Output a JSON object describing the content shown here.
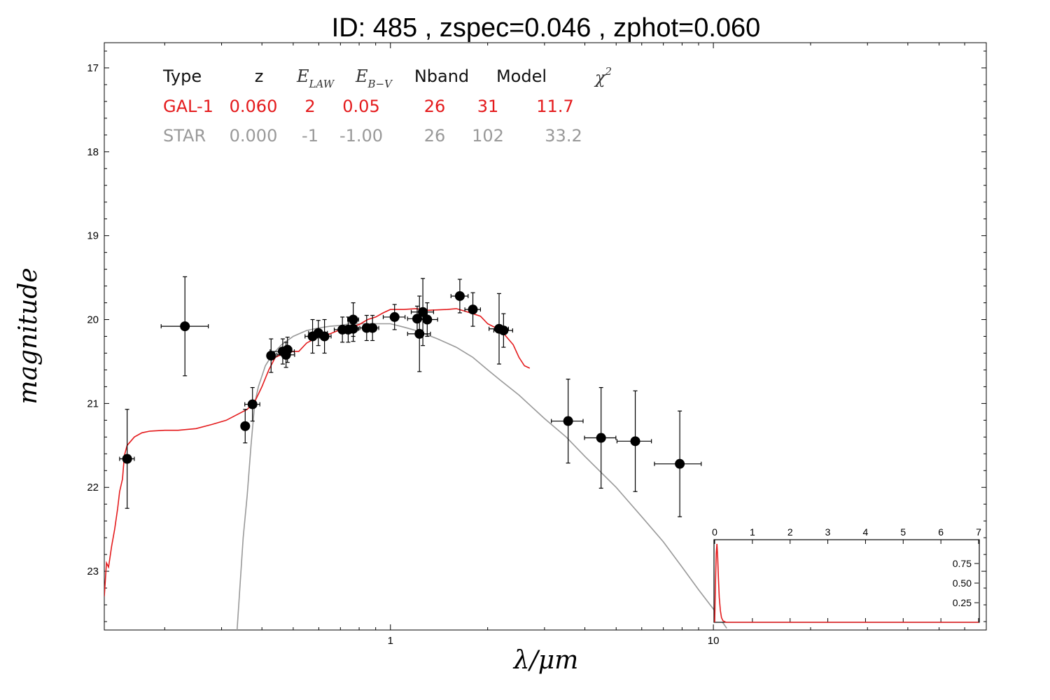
{
  "chart_data": [
    {
      "type": "scatter",
      "title": "ID:  485   , zspec=0.046 , zphot=0.060",
      "xlabel": "λ/μm",
      "ylabel": "magnitude",
      "x_scale": "log",
      "xlim": [
        0.13,
        70
      ],
      "ylim": [
        23.7,
        16.7
      ],
      "y_inverted": true,
      "x_ticks": [
        1,
        10
      ],
      "x_tick_labels": [
        "1",
        "10"
      ],
      "y_ticks": [
        17,
        18,
        19,
        20,
        21,
        22,
        23
      ],
      "y_tick_labels": [
        "17",
        "18",
        "19",
        "20",
        "21",
        "22",
        "23"
      ],
      "grid": false,
      "fit_table": {
        "headers": [
          "Type",
          "z",
          "E_LAW",
          "E_B-V",
          "Nband",
          "Model",
          "χ²"
        ],
        "rows": [
          {
            "name": "GAL-1",
            "color": "#e41a1c",
            "cells": [
              "GAL-1",
              "0.060",
              "2",
              "0.05",
              "26",
              "31",
              "11.7"
            ]
          },
          {
            "name": "STAR",
            "color": "#999999",
            "cells": [
              "STAR",
              "0.000",
              "-1",
              "-1.00",
              "26",
              "102",
              "33.2"
            ]
          }
        ]
      },
      "photometry": [
        {
          "x": 0.153,
          "y": 21.66,
          "xerr_lo": 0.008,
          "xerr_hi": 0.008,
          "yerr": 0.59
        },
        {
          "x": 0.231,
          "y": 20.08,
          "xerr_lo": 0.036,
          "xerr_hi": 0.042,
          "yerr": 0.59
        },
        {
          "x": 0.355,
          "y": 21.27,
          "xerr_lo": 0.009,
          "xerr_hi": 0.009,
          "yerr": 0.2
        },
        {
          "x": 0.374,
          "y": 21.01,
          "xerr_lo": 0.02,
          "xerr_hi": 0.02,
          "yerr": 0.2
        },
        {
          "x": 0.427,
          "y": 20.43,
          "xerr_lo": 0.012,
          "xerr_hi": 0.012,
          "yerr": 0.2
        },
        {
          "x": 0.464,
          "y": 20.38,
          "xerr_lo": 0.04,
          "xerr_hi": 0.04,
          "yerr": 0.15
        },
        {
          "x": 0.475,
          "y": 20.42,
          "xerr_lo": 0.03,
          "xerr_hi": 0.03,
          "yerr": 0.15
        },
        {
          "x": 0.48,
          "y": 20.36,
          "xerr_lo": 0.015,
          "xerr_hi": 0.015,
          "yerr": 0.15
        },
        {
          "x": 0.574,
          "y": 20.2,
          "xerr_lo": 0.03,
          "xerr_hi": 0.03,
          "yerr": 0.2
        },
        {
          "x": 0.598,
          "y": 20.16,
          "xerr_lo": 0.04,
          "xerr_hi": 0.04,
          "yerr": 0.15
        },
        {
          "x": 0.625,
          "y": 20.2,
          "xerr_lo": 0.03,
          "xerr_hi": 0.03,
          "yerr": 0.2
        },
        {
          "x": 0.71,
          "y": 20.12,
          "xerr_lo": 0.04,
          "xerr_hi": 0.04,
          "yerr": 0.15
        },
        {
          "x": 0.74,
          "y": 20.12,
          "xerr_lo": 0.04,
          "xerr_hi": 0.04,
          "yerr": 0.15
        },
        {
          "x": 0.767,
          "y": 20.0,
          "xerr_lo": 0.03,
          "xerr_hi": 0.03,
          "yerr": 0.2
        },
        {
          "x": 0.767,
          "y": 20.11,
          "xerr_lo": 0.03,
          "xerr_hi": 0.03,
          "yerr": 0.15
        },
        {
          "x": 0.844,
          "y": 20.1,
          "xerr_lo": 0.04,
          "xerr_hi": 0.04,
          "yerr": 0.15
        },
        {
          "x": 0.88,
          "y": 20.1,
          "xerr_lo": 0.04,
          "xerr_hi": 0.04,
          "yerr": 0.15
        },
        {
          "x": 1.03,
          "y": 19.97,
          "xerr_lo": 0.08,
          "xerr_hi": 0.08,
          "yerr": 0.15
        },
        {
          "x": 1.21,
          "y": 19.99,
          "xerr_lo": 0.08,
          "xerr_hi": 0.08,
          "yerr": 0.15
        },
        {
          "x": 1.23,
          "y": 20.17,
          "xerr_lo": 0.1,
          "xerr_hi": 0.1,
          "yerr": 0.45
        },
        {
          "x": 1.26,
          "y": 19.91,
          "xerr_lo": 0.1,
          "xerr_hi": 0.1,
          "yerr": 0.4
        },
        {
          "x": 1.3,
          "y": 20.0,
          "xerr_lo": 0.1,
          "xerr_hi": 0.1,
          "yerr": 0.2
        },
        {
          "x": 1.64,
          "y": 19.72,
          "xerr_lo": 0.1,
          "xerr_hi": 0.1,
          "yerr": 0.2
        },
        {
          "x": 1.8,
          "y": 19.88,
          "xerr_lo": 0.1,
          "xerr_hi": 0.1,
          "yerr": 0.2
        },
        {
          "x": 2.17,
          "y": 20.11,
          "xerr_lo": 0.15,
          "xerr_hi": 0.15,
          "yerr": 0.42
        },
        {
          "x": 2.24,
          "y": 20.13,
          "xerr_lo": 0.15,
          "xerr_hi": 0.15,
          "yerr": 0.2
        },
        {
          "x": 3.55,
          "y": 21.21,
          "xerr_lo": 0.4,
          "xerr_hi": 0.4,
          "yerr": 0.5
        },
        {
          "x": 4.49,
          "y": 21.41,
          "xerr_lo": 0.5,
          "xerr_hi": 0.5,
          "yerr": 0.6
        },
        {
          "x": 5.73,
          "y": 21.45,
          "xerr_lo": 0.7,
          "xerr_hi": 0.7,
          "yerr": 0.6
        },
        {
          "x": 7.87,
          "y": 21.72,
          "xerr_lo": 1.3,
          "xerr_hi": 1.3,
          "yerr": 0.63
        }
      ],
      "series": [
        {
          "color": "#e41a1c",
          "points": [
            [
              0.13,
              23.3
            ],
            [
              0.132,
              22.9
            ],
            [
              0.134,
              22.95
            ],
            [
              0.137,
              22.7
            ],
            [
              0.14,
              22.5
            ],
            [
              0.143,
              22.25
            ],
            [
              0.145,
              22.05
            ],
            [
              0.148,
              21.9
            ],
            [
              0.15,
              21.62
            ],
            [
              0.153,
              21.5
            ],
            [
              0.157,
              21.45
            ],
            [
              0.161,
              21.4
            ],
            [
              0.17,
              21.35
            ],
            [
              0.18,
              21.33
            ],
            [
              0.2,
              21.32
            ],
            [
              0.22,
              21.32
            ],
            [
              0.25,
              21.3
            ],
            [
              0.28,
              21.25
            ],
            [
              0.31,
              21.2
            ],
            [
              0.34,
              21.12
            ],
            [
              0.36,
              21.07
            ],
            [
              0.38,
              20.98
            ],
            [
              0.4,
              20.8
            ],
            [
              0.42,
              20.6
            ],
            [
              0.44,
              20.45
            ],
            [
              0.47,
              20.4
            ],
            [
              0.5,
              20.38
            ],
            [
              0.52,
              20.38
            ],
            [
              0.55,
              20.28
            ],
            [
              0.6,
              20.2
            ],
            [
              0.65,
              20.17
            ],
            [
              0.7,
              20.12
            ],
            [
              0.75,
              20.09
            ],
            [
              0.8,
              20.06
            ],
            [
              0.85,
              20.0
            ],
            [
              0.9,
              19.97
            ],
            [
              0.95,
              19.92
            ],
            [
              1.0,
              19.88
            ],
            [
              1.1,
              19.88
            ],
            [
              1.2,
              19.87
            ],
            [
              1.3,
              19.89
            ],
            [
              1.5,
              19.88
            ],
            [
              1.6,
              19.87
            ],
            [
              1.7,
              19.9
            ],
            [
              1.8,
              19.93
            ],
            [
              1.9,
              19.96
            ],
            [
              2.0,
              20.05
            ],
            [
              2.2,
              20.13
            ],
            [
              2.4,
              20.3
            ],
            [
              2.5,
              20.45
            ],
            [
              2.6,
              20.55
            ],
            [
              2.7,
              20.58
            ]
          ]
        },
        {
          "color": "#999999",
          "points": [
            [
              0.335,
              23.7
            ],
            [
              0.35,
              22.6
            ],
            [
              0.36,
              22.1
            ],
            [
              0.37,
              21.5
            ],
            [
              0.38,
              21.0
            ],
            [
              0.39,
              20.8
            ],
            [
              0.41,
              20.55
            ],
            [
              0.43,
              20.42
            ],
            [
              0.46,
              20.3
            ],
            [
              0.5,
              20.2
            ],
            [
              0.55,
              20.13
            ],
            [
              0.6,
              20.1
            ],
            [
              0.65,
              20.08
            ],
            [
              0.7,
              20.07
            ],
            [
              0.75,
              20.05
            ],
            [
              0.8,
              20.05
            ],
            [
              0.9,
              20.05
            ],
            [
              1.0,
              20.05
            ],
            [
              1.1,
              20.09
            ],
            [
              1.2,
              20.13
            ],
            [
              1.4,
              20.23
            ],
            [
              1.6,
              20.33
            ],
            [
              1.8,
              20.45
            ],
            [
              2.0,
              20.6
            ],
            [
              2.2,
              20.73
            ],
            [
              2.5,
              20.9
            ],
            [
              3.0,
              21.18
            ],
            [
              3.5,
              21.4
            ],
            [
              4.0,
              21.63
            ],
            [
              5.0,
              22.0
            ],
            [
              6.0,
              22.35
            ],
            [
              7.0,
              22.65
            ],
            [
              8.0,
              22.95
            ],
            [
              9.0,
              23.22
            ],
            [
              10.0,
              23.45
            ],
            [
              11.0,
              23.68
            ]
          ]
        }
      ]
    },
    {
      "type": "line",
      "xlim": [
        0,
        7
      ],
      "ylim": [
        0,
        1
      ],
      "x_ticks": [
        0,
        1,
        2,
        3,
        4,
        5,
        6,
        7
      ],
      "x_tick_labels": [
        "0",
        "1",
        "2",
        "3",
        "4",
        "5",
        "6",
        "7"
      ],
      "y_ticks": [
        0.25,
        0.5,
        0.75
      ],
      "y_tick_labels": [
        "0.25",
        "0.50",
        "0.75"
      ],
      "series": [
        {
          "color": "#e41a1c",
          "points": [
            [
              0,
              0
            ],
            [
              0.02,
              0.5
            ],
            [
              0.04,
              0.88
            ],
            [
              0.06,
              1.0
            ],
            [
              0.08,
              0.82
            ],
            [
              0.1,
              0.55
            ],
            [
              0.12,
              0.32
            ],
            [
              0.15,
              0.15
            ],
            [
              0.18,
              0.06
            ],
            [
              0.22,
              0.02
            ],
            [
              0.3,
              0
            ],
            [
              7,
              0
            ]
          ]
        }
      ]
    }
  ]
}
